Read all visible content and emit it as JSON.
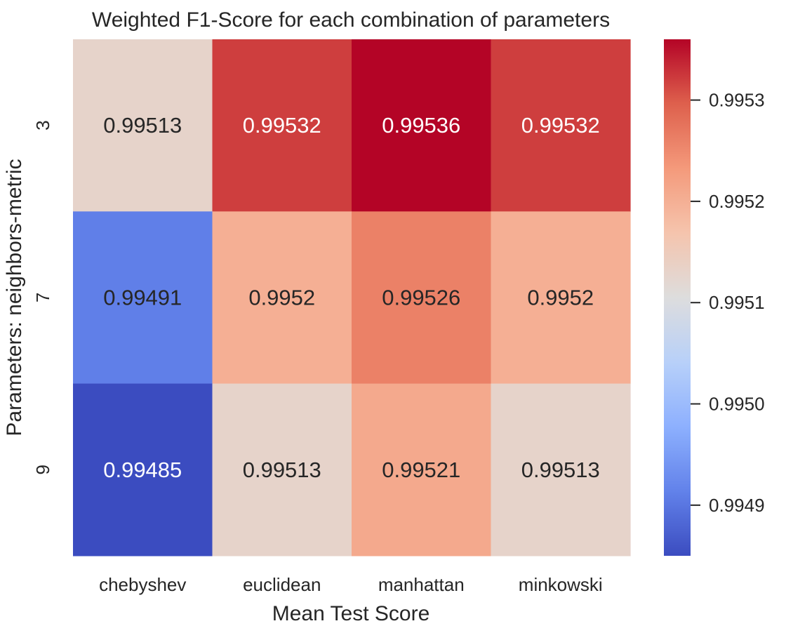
{
  "chart_data": {
    "type": "heatmap",
    "title": "Weighted F1-Score for each combination of parameters",
    "xlabel": "Mean Test Score",
    "ylabel": "Parameters: neighbors-metric",
    "x_categories": [
      "chebyshev",
      "euclidean",
      "manhattan",
      "minkowski"
    ],
    "y_categories": [
      "3",
      "7",
      "9"
    ],
    "values": [
      [
        0.99513,
        0.99532,
        0.99536,
        0.99532
      ],
      [
        0.99491,
        0.9952,
        0.99526,
        0.9952
      ],
      [
        0.99485,
        0.99513,
        0.99521,
        0.99513
      ]
    ],
    "cell_labels": [
      [
        "0.99513",
        "0.99532",
        "0.99536",
        "0.99532"
      ],
      [
        "0.99491",
        "0.9952",
        "0.99526",
        "0.9952"
      ],
      [
        "0.99485",
        "0.99513",
        "0.99521",
        "0.99513"
      ]
    ],
    "colormap": "coolwarm",
    "vmin": 0.99485,
    "vmax": 0.99536,
    "colorbar_ticks": [
      0.9949,
      0.995,
      0.9951,
      0.9952,
      0.9953
    ],
    "colorbar_tick_labels": [
      "0.9949",
      "0.9950",
      "0.9951",
      "0.9952",
      "0.9953"
    ],
    "colorbar_placement": "right",
    "grid": false,
    "dark_text_color": "#262626",
    "light_text_color": "#ffffff"
  }
}
